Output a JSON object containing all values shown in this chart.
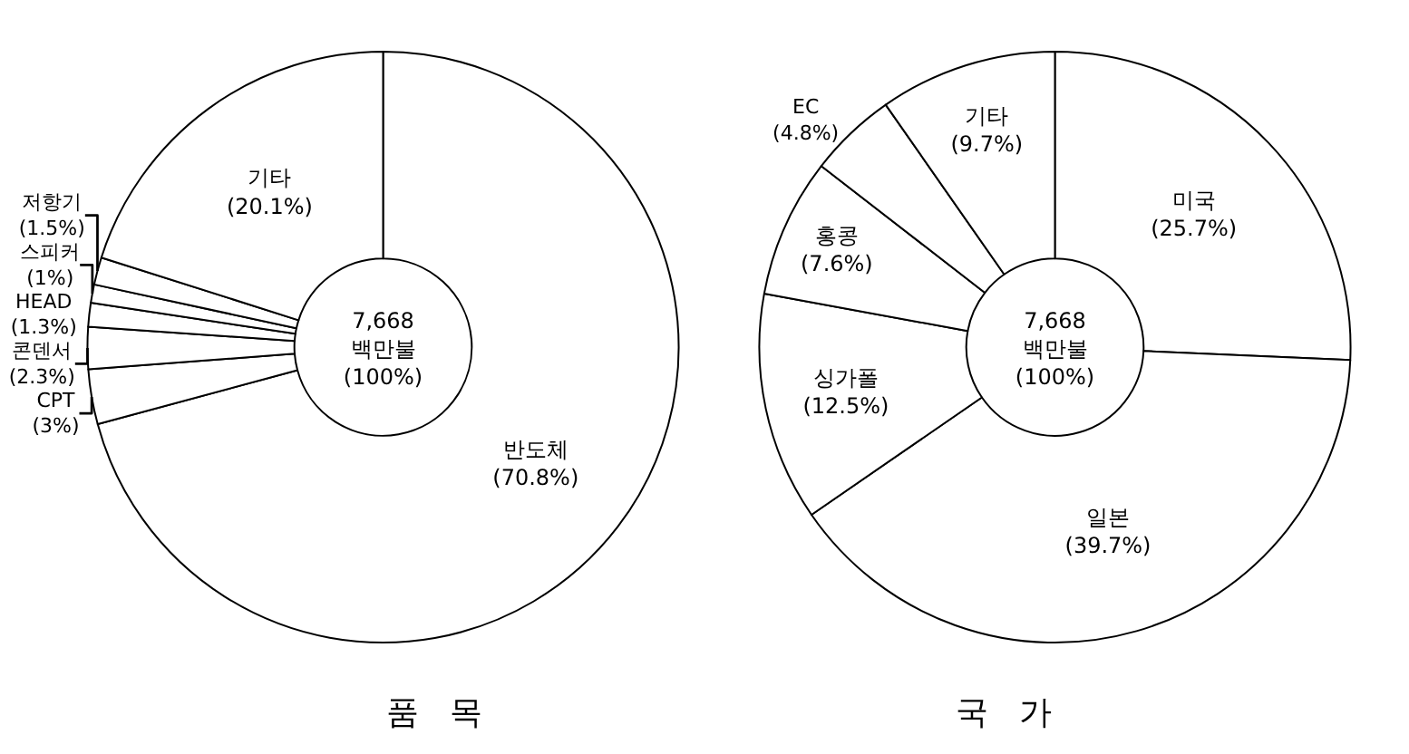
{
  "chart_data": [
    {
      "type": "donut",
      "title": "품   목",
      "categories": [
        "반도체",
        "CPT",
        "콘덴서",
        "HEAD",
        "스피커",
        "저항기",
        "기타"
      ],
      "values": [
        70.8,
        3,
        2.3,
        1.3,
        1,
        1.5,
        20.1
      ],
      "colors": [
        "#ffffff",
        "#ffffff",
        "#ffffff",
        "#ffffff",
        "#ffffff",
        "#ffffff",
        "#ffffff"
      ],
      "value_labels": [
        "(70.8%)",
        "(3%)",
        "(2.3%)",
        "(1.3%)",
        "(1%)",
        "(1.5%)",
        "(20.1%)"
      ],
      "annotations": [
        "7,668\n백만불\n(100%)"
      ]
    },
    {
      "type": "donut",
      "title": "국   가",
      "categories": [
        "미국",
        "일본",
        "싱가폴",
        "홍콩",
        "EC",
        "기타"
      ],
      "values": [
        25.7,
        39.7,
        12.5,
        7.6,
        4.8,
        9.7
      ],
      "colors": [
        "#ffffff",
        "#ffffff",
        "#ffffff",
        "#ffffff",
        "#ffffff",
        "#ffffff"
      ],
      "value_labels": [
        "(25.7%)",
        "(39.7%)",
        "(12.5%)",
        "(7.6%)",
        "(4.8%)",
        "(9.7%)"
      ],
      "annotations": [
        "7,668\n백만불\n(100%)"
      ]
    }
  ]
}
